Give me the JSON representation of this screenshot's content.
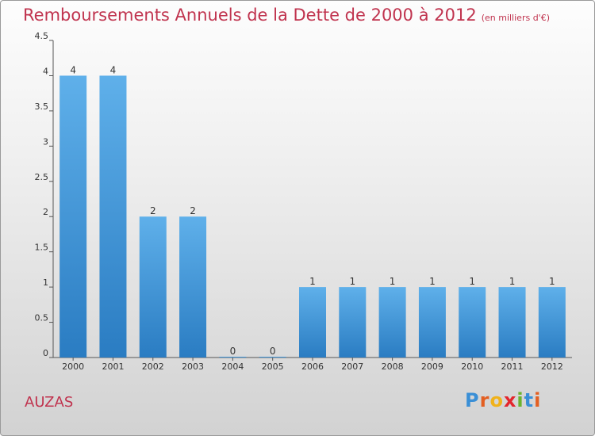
{
  "title": "Remboursements Annuels de la Dette de 2000 à 2012",
  "subtitle": "(en milliers d'€)",
  "commune": "AUZAS",
  "logo": {
    "text": "Proxiti",
    "letters": [
      {
        "ch": "P",
        "color": "#3a8fd6"
      },
      {
        "ch": "r",
        "color": "#e35f22"
      },
      {
        "ch": "o",
        "color": "#f0b21b"
      },
      {
        "ch": "x",
        "color": "#e3262d"
      },
      {
        "ch": "i",
        "color": "#6bb32e"
      },
      {
        "ch": "t",
        "color": "#3a8fd6"
      },
      {
        "ch": "i",
        "color": "#e35f22"
      }
    ]
  },
  "chart_data": {
    "type": "bar",
    "categories": [
      "2000",
      "2001",
      "2002",
      "2003",
      "2004",
      "2005",
      "2006",
      "2007",
      "2008",
      "2009",
      "2010",
      "2011",
      "2012"
    ],
    "values": [
      4,
      4,
      2,
      2,
      0,
      0,
      1,
      1,
      1,
      1,
      1,
      1,
      1
    ],
    "data_labels": [
      "4",
      "4",
      "2",
      "2",
      "0",
      "0",
      "1",
      "1",
      "1",
      "1",
      "1",
      "1",
      "1"
    ],
    "ylim": [
      0,
      4.5
    ],
    "yticks": [
      "0",
      "0.5",
      "1",
      "1.5",
      "2",
      "2.5",
      "3",
      "3.5",
      "4",
      "4.5"
    ],
    "ytick_values": [
      0,
      0.5,
      1,
      1.5,
      2,
      2.5,
      3,
      3.5,
      4,
      4.5
    ],
    "bar_color": "#3d8fd8",
    "grid": false,
    "legend": "none"
  }
}
